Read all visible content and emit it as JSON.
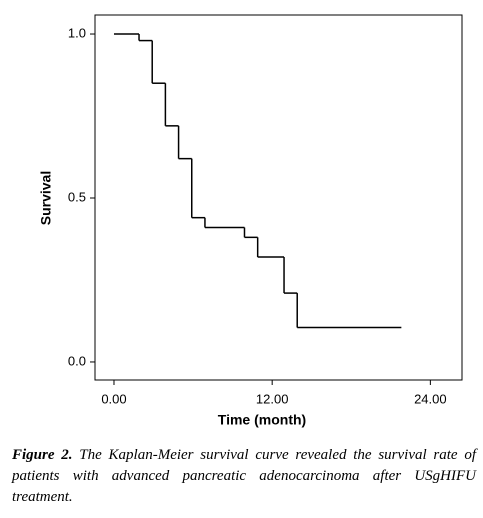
{
  "chart_data": {
    "type": "step",
    "x": [
      0,
      1.9,
      2.9,
      3.9,
      4.9,
      5.9,
      6.9,
      9.9,
      10.9,
      12.9,
      13.9,
      21.8
    ],
    "values": [
      1.0,
      0.98,
      0.85,
      0.72,
      0.62,
      0.44,
      0.41,
      0.38,
      0.32,
      0.21,
      0.105,
      0.105
    ],
    "color": "#000000",
    "xlabel": "Time (month)",
    "ylabel": "Survival",
    "xlim": [
      -1.44,
      26.4
    ],
    "ylim": [
      -0.055,
      1.058
    ],
    "xticks": [
      {
        "value": 0,
        "label": "0.00"
      },
      {
        "value": 12,
        "label": "12.00"
      },
      {
        "value": 24,
        "label": "24.00"
      }
    ],
    "yticks": [
      {
        "value": 0,
        "label": "0.0"
      },
      {
        "value": 0.5,
        "label": "0.5"
      },
      {
        "value": 1,
        "label": "1.0"
      }
    ]
  },
  "caption": {
    "label": "Figure 2.",
    "text": "The Kaplan-Meier survival curve revealed the survival rate of patients with advanced pancreatic adenocarcinoma after USgHIFU treatment."
  }
}
